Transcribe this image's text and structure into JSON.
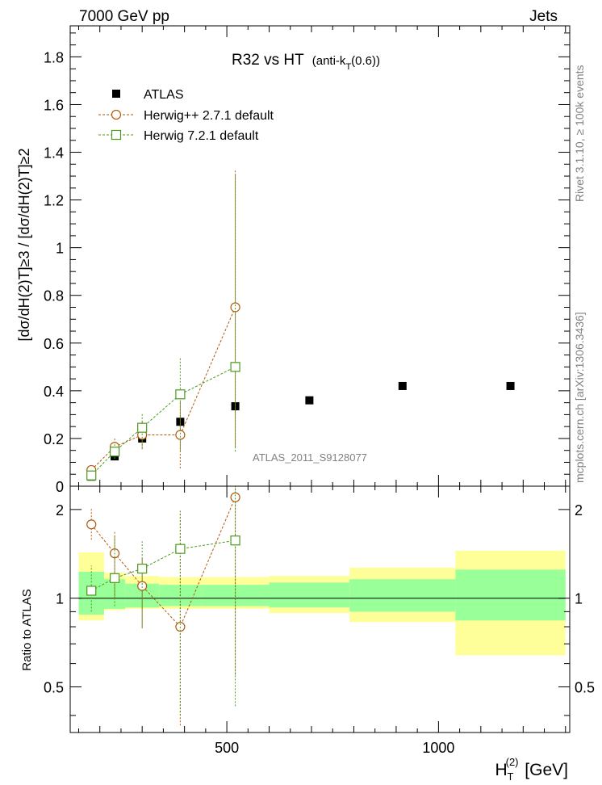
{
  "header": {
    "left": "7000 GeV pp",
    "right": "Jets"
  },
  "side_labels": {
    "rivet": "Rivet 3.1.10, ≥ 100k events",
    "mcplots": "mcplots.cern.ch [arXiv:1306.3436]"
  },
  "chart_data": {
    "type": "scatter",
    "title": "R32 vs HT",
    "title_suffix": "(anti-k",
    "title_sub": "T",
    "title_end": "(0.6))",
    "analysis_label": "ATLAS_2011_S9128077",
    "xlabel": "H",
    "xlabel_sub": "T",
    "xlabel_sup": "(2)",
    "xlabel_unit": " [GeV]",
    "ylabel": "[dσ/dH(2)T]≥3 / [dσ/dH(2)T]≥2",
    "xlim": [
      130,
      1310
    ],
    "x_ticks": [
      500,
      1000
    ],
    "x_tick_labels": [
      "500",
      "1000"
    ],
    "main": {
      "ylim": [
        0,
        1.93
      ],
      "y_ticks": [
        0,
        0.2,
        0.4,
        0.6,
        0.8,
        1,
        1.2,
        1.4,
        1.6,
        1.8
      ],
      "y_tick_labels": [
        "0",
        "0.2",
        "0.4",
        "0.6",
        "0.8",
        "1",
        "1.2",
        "1.4",
        "1.6",
        "1.8"
      ]
    },
    "ratio": {
      "ylabel": "Ratio to ATLAS",
      "ylim": [
        0.35,
        2.4
      ],
      "log": true,
      "y_ticks": [
        0.5,
        1,
        2
      ],
      "y_tick_labels": [
        "0.5",
        "1",
        "2"
      ]
    },
    "bins": [
      {
        "lo": 150,
        "hi": 210,
        "band_stat": [
          0.88,
          1.23
        ],
        "band_tot": [
          0.84,
          1.43
        ]
      },
      {
        "lo": 210,
        "hi": 260,
        "band_stat": [
          0.92,
          1.16
        ],
        "band_tot": [
          0.91,
          1.22
        ]
      },
      {
        "lo": 260,
        "hi": 340,
        "band_stat": [
          0.93,
          1.12
        ],
        "band_tot": [
          0.92,
          1.19
        ]
      },
      {
        "lo": 340,
        "hi": 440,
        "band_stat": [
          0.94,
          1.11
        ],
        "band_tot": [
          0.92,
          1.18
        ]
      },
      {
        "lo": 440,
        "hi": 600,
        "band_stat": [
          0.94,
          1.11
        ],
        "band_tot": [
          0.92,
          1.18
        ]
      },
      {
        "lo": 600,
        "hi": 790,
        "band_stat": [
          0.93,
          1.13
        ],
        "band_tot": [
          0.89,
          1.19
        ]
      },
      {
        "lo": 790,
        "hi": 1040,
        "band_stat": [
          0.9,
          1.16
        ],
        "band_tot": [
          0.83,
          1.27
        ]
      },
      {
        "lo": 1040,
        "hi": 1300,
        "band_stat": [
          0.84,
          1.25
        ],
        "band_tot": [
          0.64,
          1.45
        ]
      }
    ],
    "series": [
      {
        "name": "ATLAS",
        "color": "#000000",
        "marker": "filled-square",
        "x": [
          180,
          235,
          300,
          390,
          520,
          695,
          915,
          1170
        ],
        "y": [
          0.04,
          0.125,
          0.2,
          0.27,
          0.335,
          0.36,
          0.42,
          0.42
        ]
      },
      {
        "name": "Herwig++ 2.7.1 default",
        "color": "#b05a10",
        "marker": "open-circle",
        "x": [
          180,
          235,
          300,
          390,
          520
        ],
        "y": [
          0.068,
          0.165,
          0.215,
          0.215,
          0.75
        ],
        "yerr_lo": [
          0.06,
          0.125,
          0.155,
          0.075,
          0.165
        ],
        "yerr_hi": [
          0.078,
          0.2,
          0.275,
          0.36,
          1.325
        ],
        "ratio": [
          1.78,
          1.42,
          1.1,
          0.8,
          2.2
        ],
        "ratio_lo": [
          1.58,
          1.0,
          0.79,
          0.37,
          0.55
        ],
        "ratio_hi": [
          2.02,
          1.69,
          1.36,
          1.98,
          2.4
        ]
      },
      {
        "name": "Herwig 7.2.1 default",
        "color": "#4a9a1a",
        "marker": "open-square",
        "x": [
          180,
          235,
          300,
          390,
          520
        ],
        "y": [
          0.045,
          0.145,
          0.245,
          0.385,
          0.5
        ],
        "yerr_lo": [
          0.03,
          0.115,
          0.16,
          0.15,
          0.145
        ],
        "yerr_hi": [
          0.062,
          0.175,
          0.305,
          0.54,
          1.31
        ],
        "ratio": [
          1.06,
          1.17,
          1.26,
          1.47,
          1.57
        ],
        "ratio_lo": [
          0.9,
          0.94,
          0.8,
          0.4,
          0.43
        ],
        "ratio_hi": [
          1.29,
          1.63,
          1.56,
          1.98,
          2.4
        ]
      }
    ]
  }
}
